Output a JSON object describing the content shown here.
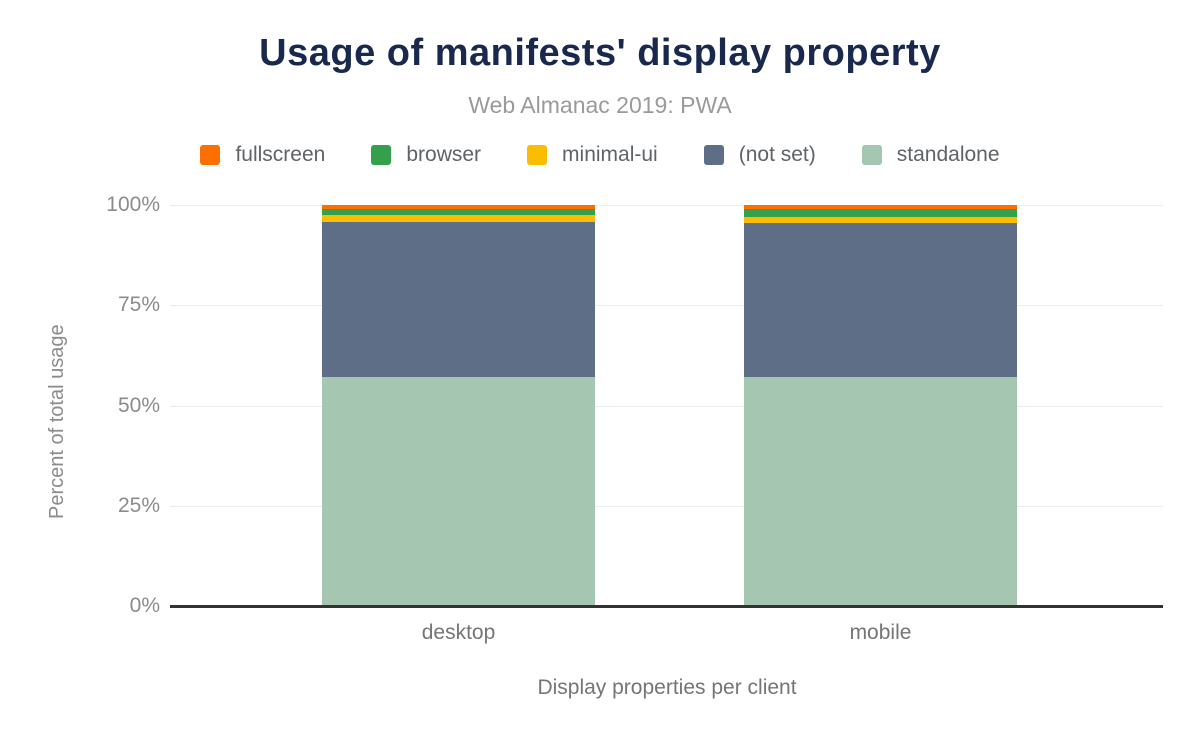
{
  "chart_data": {
    "type": "bar",
    "stacked": true,
    "title": "Usage of manifests' display property",
    "subtitle": "Web Almanac 2019: PWA",
    "xlabel": "Display properties per client",
    "ylabel": "Percent of total usage",
    "categories": [
      "desktop",
      "mobile"
    ],
    "series": [
      {
        "name": "fullscreen",
        "color": "#ff6f00",
        "values": [
          1.1,
          0.9
        ]
      },
      {
        "name": "browser",
        "color": "#34a04b",
        "values": [
          1.5,
          2.2
        ]
      },
      {
        "name": "minimal-ui",
        "color": "#fbbc04",
        "values": [
          1.7,
          1.3
        ]
      },
      {
        "name": "(not set)",
        "color": "#5f6e87",
        "values": [
          38.6,
          38.4
        ]
      },
      {
        "name": "standalone",
        "color": "#a5c7b2",
        "values": [
          57.1,
          57.2
        ]
      }
    ],
    "stack_bottom_to_top": [
      "standalone",
      "(not set)",
      "minimal-ui",
      "browser",
      "fullscreen"
    ],
    "legend_position": "top",
    "legend_order": [
      "fullscreen",
      "browser",
      "minimal-ui",
      "(not set)",
      "standalone"
    ],
    "y_ticks": [
      "0%",
      "25%",
      "50%",
      "75%",
      "100%"
    ],
    "y_tick_values": [
      0,
      25,
      50,
      75,
      100
    ],
    "ylim": [
      0,
      100
    ],
    "grid": true
  },
  "colors": {
    "title": "#19294d",
    "subtitle": "#9a9a9a",
    "axis_text": "#8b8b8b",
    "axis_line": "#333333",
    "gridline": "#ececec",
    "background": "#ffffff"
  }
}
